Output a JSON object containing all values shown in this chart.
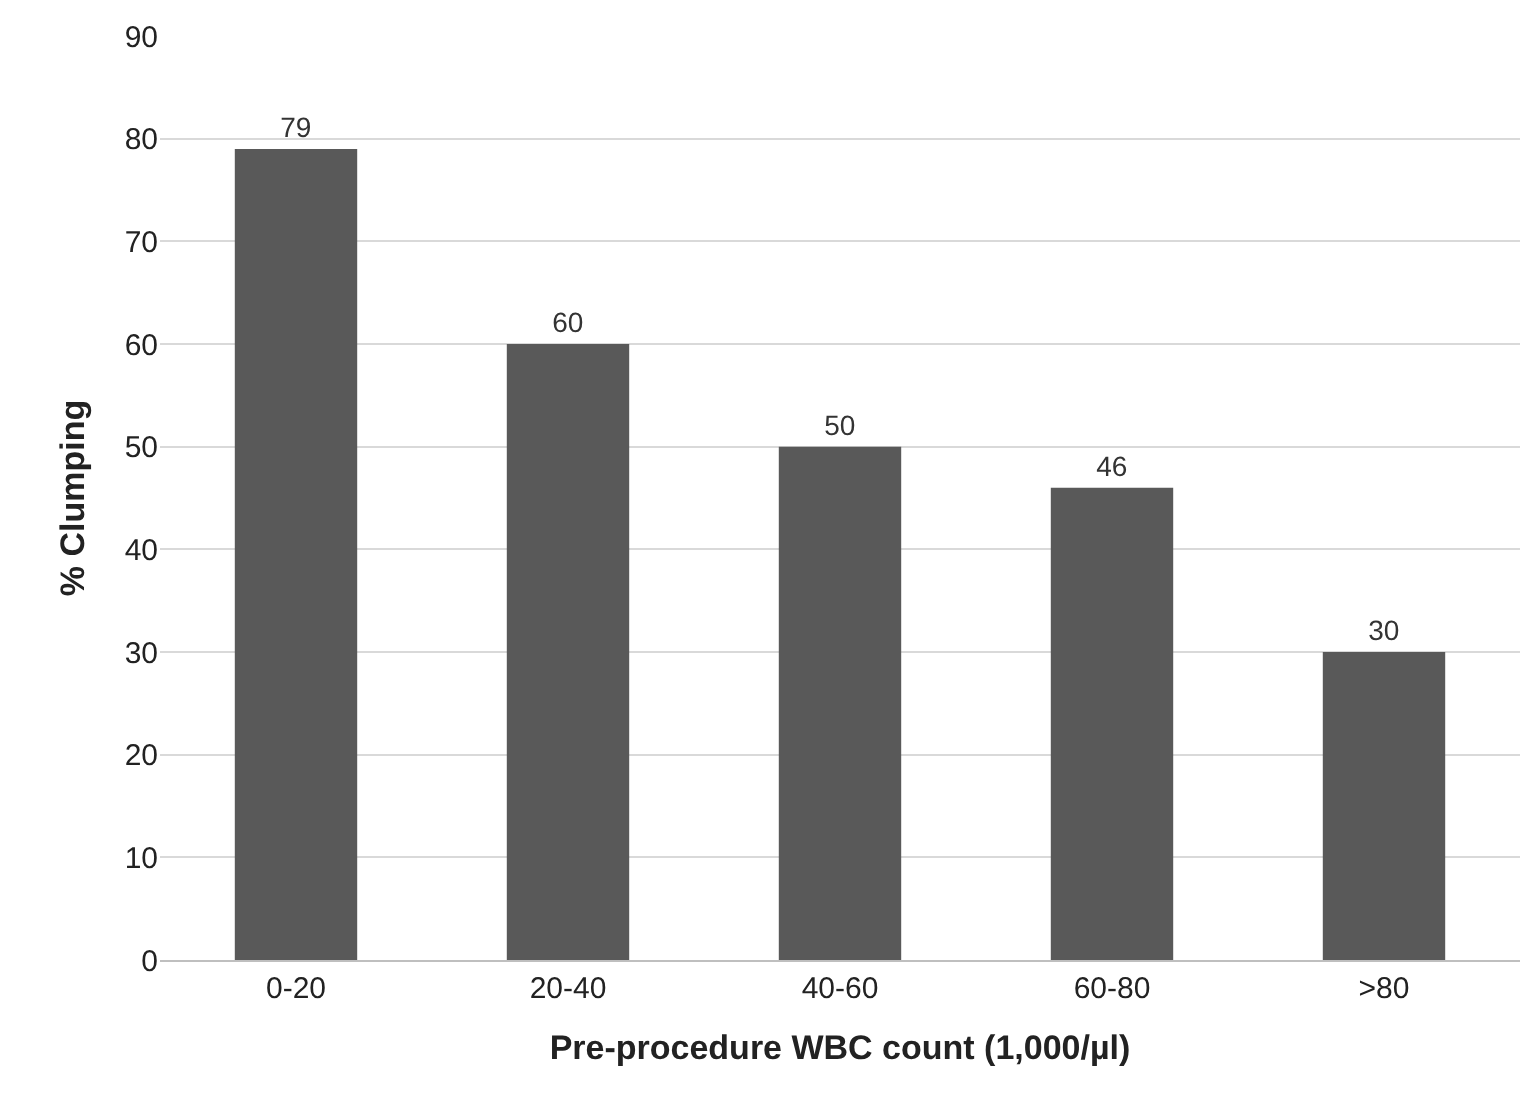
{
  "chart_data": {
    "type": "bar",
    "xlabel": "Pre-procedure WBC count (1,000/µl)",
    "ylabel": "% Clumping",
    "categories": [
      "0-20",
      "20-40",
      "40-60",
      "60-80",
      ">80"
    ],
    "values": [
      79,
      60,
      50,
      46,
      30
    ],
    "color": "#595959",
    "ylim": [
      0,
      90
    ],
    "yticks": [
      0,
      10,
      20,
      30,
      40,
      50,
      60,
      70,
      80,
      90
    ],
    "grid": "y",
    "data_labels": true
  }
}
